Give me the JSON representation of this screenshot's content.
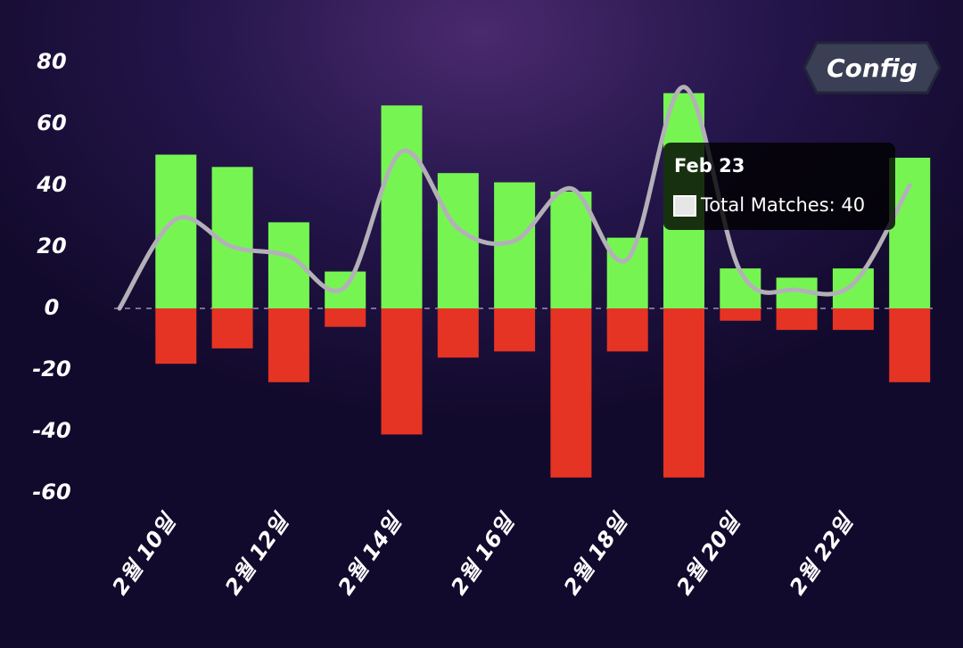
{
  "chart_data": {
    "type": "bar-line",
    "categories": [
      null,
      "2월 10일",
      null,
      "2월 12일",
      null,
      "2월 14일",
      null,
      "2월 16일",
      null,
      "2월 18일",
      null,
      "2월 20일",
      null,
      "2월 22일",
      null
    ],
    "series": [
      {
        "type": "bar",
        "color": "#76f552",
        "values": [
          null,
          50,
          46,
          28,
          12,
          66,
          44,
          41,
          38,
          23,
          70,
          13,
          10,
          13,
          49
        ]
      },
      {
        "type": "bar",
        "color": "#e53423",
        "values": [
          null,
          -18,
          -13,
          -24,
          -6,
          -41,
          -16,
          -14,
          -55,
          -14,
          -55,
          -4,
          -7,
          -7,
          -24
        ]
      },
      {
        "type": "line",
        "name": "Total Matches",
        "color": "#b3b0b8",
        "values": [
          0,
          29,
          20,
          17,
          7,
          51,
          26,
          22,
          39,
          16,
          72,
          12,
          6,
          8,
          40
        ]
      }
    ],
    "ylim": [
      -60,
      80
    ],
    "yticks": [
      -60,
      -40,
      -20,
      0,
      20,
      40,
      60,
      80
    ],
    "tooltip": {
      "title": "Feb 23",
      "label": "Total Matches: 40"
    },
    "button": "Config"
  }
}
